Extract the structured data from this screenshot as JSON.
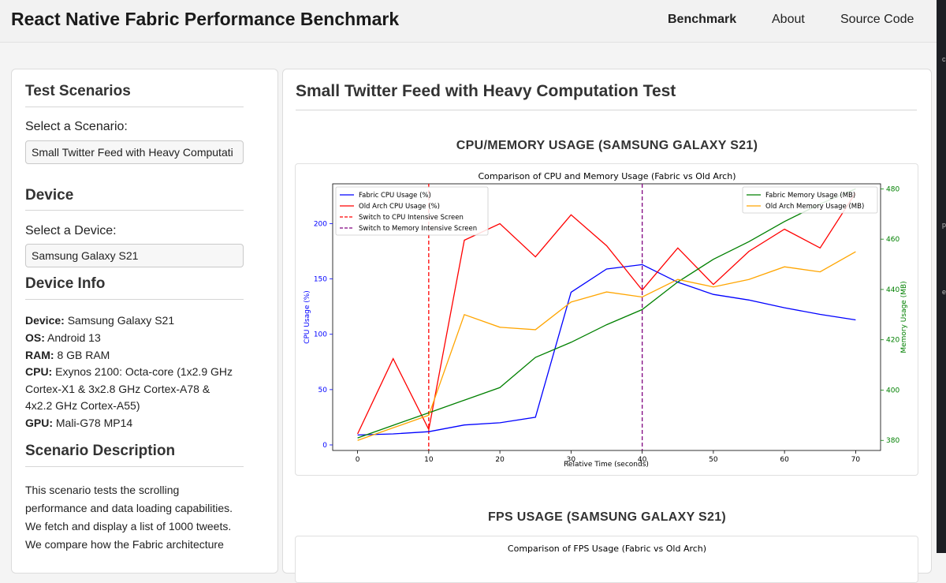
{
  "header": {
    "title": "React Native Fabric Performance Benchmark",
    "nav": [
      "Benchmark",
      "About",
      "Source Code"
    ]
  },
  "sidebar": {
    "scenarios_title": "Test Scenarios",
    "scenario_label": "Select a Scenario:",
    "scenario_value": "Small Twitter Feed with Heavy Computati",
    "device_title": "Device",
    "device_label": "Select a Device:",
    "device_value": "Samsung Galaxy S21",
    "info_title": "Device Info",
    "info": {
      "device_key": "Device:",
      "device_val": "Samsung Galaxy S21",
      "os_key": "OS:",
      "os_val": "Android 13",
      "ram_key": "RAM:",
      "ram_val": "8 GB RAM",
      "cpu_key": "CPU:",
      "cpu_line1": "Exynos 2100: Octa-core (1x2.9 GHz",
      "cpu_line2": "Cortex-X1 & 3x2.8 GHz Cortex-A78 &",
      "cpu_line3": "4x2.2 GHz Cortex-A55)",
      "gpu_key": "GPU:",
      "gpu_val": "Mali-G78 MP14"
    },
    "desc_title": "Scenario Description",
    "desc_lines": [
      "This scenario tests the scrolling",
      "performance and data loading capabilities.",
      "We fetch and display a list of 1000 tweets.",
      "We compare how the Fabric architecture"
    ]
  },
  "main": {
    "title": "Small Twitter Feed with Heavy Computation Test",
    "cpu_section_title": "CPU/MEMORY USAGE (SAMSUNG GALAXY S21)",
    "fps_section_title": "FPS USAGE (SAMSUNG GALAXY S21)",
    "fps_chart_title": "Comparison of FPS Usage (Fabric vs Old Arch)"
  },
  "colors": {
    "fabric_cpu": "#0000ff",
    "old_cpu": "#ff0000",
    "fabric_mem": "#008000",
    "old_mem": "#ffa500",
    "cpu_switch": "#ff0000",
    "mem_switch": "#800080"
  },
  "chart_data": {
    "type": "line",
    "title": "Comparison of CPU and Memory Usage (Fabric vs Old Arch)",
    "xlabel": "Relative Time (seconds)",
    "ylabel": "CPU Usage (%)",
    "y2label": "Memory Usage (MB)",
    "xlim": [
      -3.5,
      73.5
    ],
    "ylim": [
      -5,
      236
    ],
    "y2lim": [
      376,
      482
    ],
    "x_ticks": [
      0,
      10,
      20,
      30,
      40,
      50,
      60,
      70
    ],
    "y_ticks": [
      0,
      50,
      100,
      150,
      200
    ],
    "y2_ticks": [
      380,
      400,
      420,
      440,
      460,
      480
    ],
    "x": [
      0,
      5,
      10,
      15,
      20,
      25,
      30,
      35,
      40,
      45,
      50,
      55,
      60,
      65,
      70
    ],
    "series": [
      {
        "name": "Fabric CPU Usage (%)",
        "axis": "left",
        "color": "#0000ff",
        "values": [
          9,
          10,
          12,
          18,
          20,
          25,
          138,
          159,
          163,
          147,
          136,
          131,
          124,
          118,
          113
        ]
      },
      {
        "name": "Old Arch CPU Usage (%)",
        "axis": "left",
        "color": "#ff0000",
        "values": [
          10,
          78,
          14,
          185,
          200,
          170,
          208,
          180,
          140,
          178,
          145,
          175,
          195,
          178,
          228
        ]
      },
      {
        "name": "Fabric Memory Usage (MB)",
        "axis": "right",
        "color": "#008000",
        "values": [
          381,
          386,
          391,
          396,
          401,
          413,
          419,
          426,
          432,
          443,
          452,
          459,
          467,
          474,
          480
        ]
      },
      {
        "name": "Old Arch Memory Usage (MB)",
        "axis": "right",
        "color": "#ffa500",
        "values": [
          380,
          385,
          390,
          430,
          425,
          424,
          435,
          439,
          437,
          444,
          441,
          444,
          449,
          447,
          455
        ]
      }
    ],
    "vlines": [
      {
        "name": "Switch to CPU Intensive Screen",
        "x": 10,
        "color": "#ff0000"
      },
      {
        "name": "Switch to Memory Intensive Screen",
        "x": 40,
        "color": "#800080"
      }
    ],
    "legend_left": "top-left",
    "legend_right": "top-right",
    "grid": false
  }
}
